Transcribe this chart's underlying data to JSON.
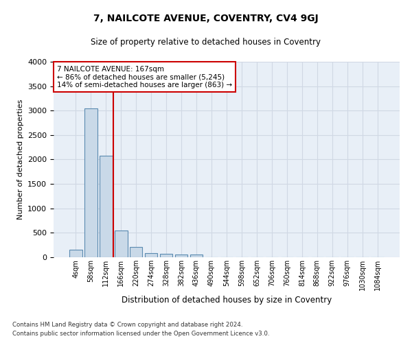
{
  "title": "7, NAILCOTE AVENUE, COVENTRY, CV4 9GJ",
  "subtitle": "Size of property relative to detached houses in Coventry",
  "xlabel": "Distribution of detached houses by size in Coventry",
  "ylabel": "Number of detached properties",
  "footnote1": "Contains HM Land Registry data © Crown copyright and database right 2024.",
  "footnote2": "Contains public sector information licensed under the Open Government Licence v3.0.",
  "bar_labels": [
    "4sqm",
    "58sqm",
    "112sqm",
    "166sqm",
    "220sqm",
    "274sqm",
    "328sqm",
    "382sqm",
    "436sqm",
    "490sqm",
    "544sqm",
    "598sqm",
    "652sqm",
    "706sqm",
    "760sqm",
    "814sqm",
    "868sqm",
    "922sqm",
    "976sqm",
    "1030sqm",
    "1084sqm"
  ],
  "bar_values": [
    150,
    3050,
    2080,
    550,
    215,
    80,
    70,
    55,
    50,
    0,
    0,
    0,
    0,
    0,
    0,
    0,
    0,
    0,
    0,
    0,
    0
  ],
  "bar_color": "#c9d9e8",
  "bar_edgecolor": "#5a8ab0",
  "red_line_x": 2.5,
  "annotation_line1": "7 NAILCOTE AVENUE: 167sqm",
  "annotation_line2": "← 86% of detached houses are smaller (5,245)",
  "annotation_line3": "14% of semi-detached houses are larger (863) →",
  "annotation_box_color": "#ffffff",
  "annotation_box_edgecolor": "#cc0000",
  "grid_color": "#d0d8e4",
  "background_color": "#e8eff7",
  "ylim": [
    0,
    4000
  ],
  "yticks": [
    0,
    500,
    1000,
    1500,
    2000,
    2500,
    3000,
    3500,
    4000
  ]
}
